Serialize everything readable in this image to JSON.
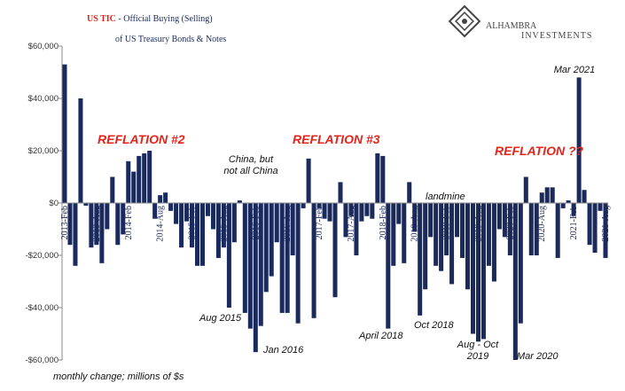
{
  "chart_data": {
    "type": "bar",
    "title_highlight": "US TIC",
    "title": " - Official Buying (Selling)",
    "title_line2": "of US Treasury Bonds & Notes",
    "logo": "ALHAMBRA",
    "logo_sub": "INVESTMENTS",
    "footnote": "monthly change; millions of $s",
    "color": "#1b2a5c",
    "categories": [
      "2013-Feb",
      null,
      null,
      null,
      null,
      null,
      "2013-Aug",
      null,
      null,
      null,
      null,
      null,
      "2014-Feb",
      null,
      null,
      null,
      null,
      null,
      "2014-Aug",
      null,
      null,
      null,
      null,
      null,
      "2015-Feb",
      null,
      null,
      null,
      null,
      null,
      "2015-Aug",
      null,
      null,
      null,
      null,
      null,
      "2016-Feb",
      null,
      null,
      null,
      null,
      null,
      "2016-Aug",
      null,
      null,
      null,
      null,
      null,
      "2017-Feb",
      null,
      null,
      null,
      null,
      null,
      "2017-Aug",
      null,
      null,
      null,
      null,
      null,
      "2018-Feb",
      null,
      null,
      null,
      null,
      null,
      "2018-Aug",
      null,
      null,
      null,
      null,
      null,
      "2019-Feb",
      null,
      null,
      null,
      null,
      null,
      "2019-Aug",
      null,
      null,
      null,
      null,
      null,
      "2020-Feb",
      null,
      null,
      null,
      null,
      null,
      "2020-Aug",
      null,
      null,
      null,
      null,
      null,
      "2021-Feb",
      null,
      null,
      null,
      null,
      null,
      "2021-Aug"
    ],
    "values": [
      53000,
      -16000,
      -24000,
      40000,
      -1000,
      -17000,
      -16000,
      -23000,
      -10000,
      10000,
      -16000,
      -12000,
      16000,
      12000,
      18000,
      19000,
      20000,
      -6000,
      3000,
      4000,
      -3000,
      -8000,
      -17000,
      -7000,
      -17000,
      -24000,
      -24000,
      -5000,
      -10000,
      -21000,
      -17000,
      -40000,
      -15000,
      1000,
      -42000,
      -48000,
      -57000,
      -47000,
      -34000,
      -28000,
      -15000,
      -42000,
      -42000,
      -20000,
      -46000,
      -2000,
      17000,
      -44000,
      -2000,
      -6000,
      -7000,
      -36000,
      8000,
      -13000,
      -5000,
      -20000,
      -7000,
      -5000,
      -6000,
      19000,
      18000,
      -48000,
      -24000,
      -8000,
      -23000,
      8000,
      -11000,
      -43000,
      -33000,
      -13000,
      -24000,
      -26000,
      -20000,
      -31000,
      -13000,
      -21000,
      -33000,
      -50000,
      -53000,
      -52000,
      -24000,
      -30000,
      -10000,
      -13000,
      -20000,
      -60000,
      -46000,
      10000,
      -20000,
      -20000,
      4000,
      6000,
      6000,
      -21000,
      -2000,
      1000,
      -5000,
      48000,
      5000,
      -16000,
      -19000,
      -3000,
      -21000
    ],
    "ylim": [
      -60000,
      60000
    ],
    "yticks": [
      {
        "value": -60000,
        "label": "-$60,000"
      },
      {
        "value": -40000,
        "label": "-$40,000"
      },
      {
        "value": -20000,
        "label": "-$20,000"
      },
      {
        "value": 0,
        "label": "$0"
      },
      {
        "value": 20000,
        "label": "$20,000"
      },
      {
        "value": 40000,
        "label": "$40,000"
      },
      {
        "value": 60000,
        "label": "$60,000"
      }
    ],
    "annotations": [
      {
        "lines": [
          "REFLATION #2"
        ],
        "style": "red"
      },
      {
        "lines": [
          "REFLATION #3"
        ],
        "style": "red"
      },
      {
        "lines": [
          "REFLATION ??"
        ],
        "style": "red"
      },
      {
        "lines": [
          "China, but",
          "not all China"
        ],
        "style": "note"
      },
      {
        "lines": [
          "Aug 2015"
        ],
        "style": "note"
      },
      {
        "lines": [
          "Jan 2016"
        ],
        "style": "note"
      },
      {
        "lines": [
          "April 2018"
        ],
        "style": "note"
      },
      {
        "lines": [
          "Oct 2018"
        ],
        "style": "note"
      },
      {
        "lines": [
          "landmine"
        ],
        "style": "note"
      },
      {
        "lines": [
          "Aug - Oct",
          "2019"
        ],
        "style": "note"
      },
      {
        "lines": [
          "Mar 2020"
        ],
        "style": "note"
      },
      {
        "lines": [
          "Mar 2021"
        ],
        "style": "note"
      }
    ]
  }
}
